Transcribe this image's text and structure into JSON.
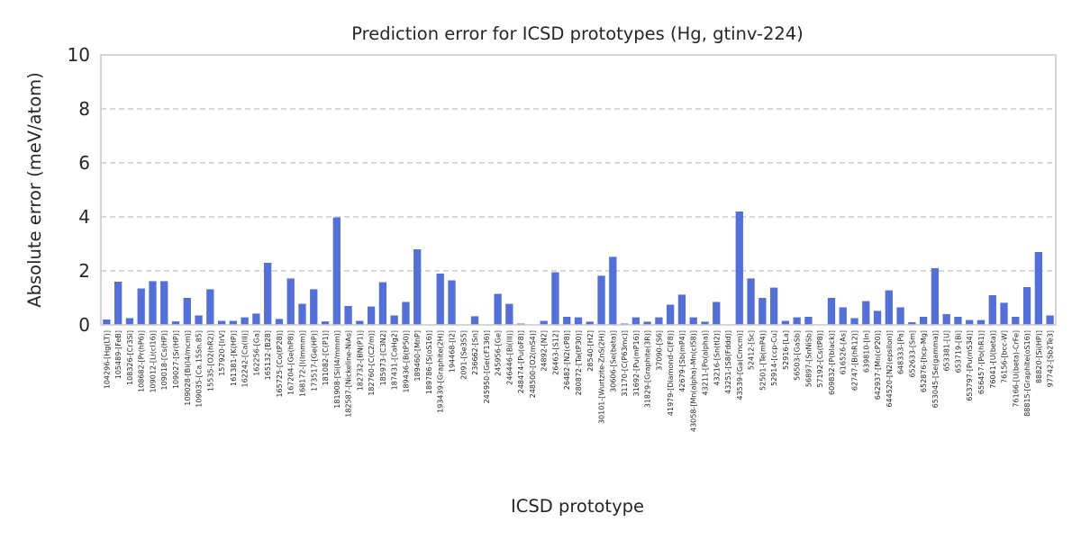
{
  "chart_data": {
    "type": "bar",
    "title": "Prediction error for ICSD prototypes (Hg, gtinv-224)",
    "xlabel": "ICSD prototype",
    "ylabel": "Absolute error (meV/atom)",
    "ylim": [
      0,
      10
    ],
    "yticks": [
      0,
      2,
      4,
      6,
      8,
      10
    ],
    "grid": "horizontal dashed",
    "bar_color": "#5470d6",
    "categories": [
      "104296-[Hg(LT)]",
      "105489-[FeB]",
      "108326-[Cr3Si]",
      "108682-[Pr(hP6)]",
      "109012-[Li(cI16)]",
      "109018-[Cs(HP)]",
      "109027-[Sr(HP)]",
      "109028-[Bi(I4/mcm)]",
      "109035-[Ca.15Sn.85]",
      "15535-[O2(hR2)]",
      "157920-[IrV]",
      "161381-[K(HP)]",
      "162242-[Ca(III)]",
      "162256-[Ga]",
      "165132-[B28]",
      "165725-[Co(tP28)]",
      "167204-[Ge(hP8)]",
      "168172-[I(Immm)]",
      "173517-[Ge(HP)]",
      "181082-[C(P1)]",
      "181908-[Si(I4/mmm)]",
      "182587-[Nickeline-NiAs]",
      "182732-[BN(P1)]",
      "182760-[C(C2/m)]",
      "185973-[C3N2]",
      "187431-[CaHg2]",
      "189436-[B(tP50)]",
      "189460-[MnP]",
      "189786-[S(oS16)]",
      "193439-[Graphite(2H)]",
      "194468-[I2]",
      "2091-[Se3S5]",
      "236662-[Sn]",
      "245950-[Ge(cF136)]",
      "245956-[Ge]",
      "246446-[Bi(III)]",
      "248474-[Pu(oF8)]",
      "248500-[O2(mS4)]",
      "24892-[N2]",
      "26463-[S12]",
      "26482-[N2(cP8)]",
      "280872-[Ta(tP30)]",
      "28540-[H2]",
      "30101-[Wurtzite-ZnS(2H)]",
      "30606-[Se(beta)]",
      "31170-[C(P63mc)]",
      "31692-[Pu(mP16)]",
      "31829-[Graphite(3R)]",
      "37090-[S6]",
      "41979-[Diamond-C(F8)]",
      "42679-[Sb(mP4)]",
      "43058-[Mn(alpha)-Mn(cI58)]",
      "43211-[Po(alpha)]",
      "43216-[Sn(tI2)]",
      "43251-[S8(Fddd)]",
      "43539-[Ga(Cmcm)]",
      "52412-[Sc]",
      "52501-[Te(mP4)]",
      "52914-[ccp-Cu]",
      "52916-[La]",
      "56503-[GaSb]",
      "56897-[SnNiSb]",
      "57192-[Cs(tP8)]",
      "609832-[P(black)]",
      "616526-[As]",
      "62747-[B(hR12)]",
      "639810-[In]",
      "642937-[Mn(cP20)]",
      "644520-[N2(epsilon)]",
      "648333-[Pa]",
      "652633-[Sm]",
      "652876-[hcp-Mg]",
      "653045-[Se(gamma)]",
      "653381-[U]",
      "653719-[Bi]",
      "653797-[Pu(mS34)]",
      "656457-[Po(hR1)]",
      "76041-[U(beta)]",
      "76156-[bcc-W]",
      "76166-[U(beta)-CrFe]",
      "88815-[Graphite(oS16)]",
      "88820-[Si(HP)]",
      "97742-[Sb2Te3]"
    ],
    "values": [
      0.2,
      1.6,
      0.25,
      1.35,
      1.62,
      1.62,
      0.13,
      1.0,
      0.35,
      1.32,
      0.15,
      0.15,
      0.28,
      0.42,
      2.3,
      0.22,
      1.72,
      0.78,
      1.32,
      0.13,
      3.98,
      0.7,
      0.15,
      0.68,
      1.58,
      0.35,
      0.85,
      2.8,
      0.0,
      1.9,
      1.65,
      0.0,
      0.32,
      0.0,
      1.15,
      0.78,
      0.05,
      0.0,
      0.15,
      1.95,
      0.3,
      0.28,
      0.12,
      1.82,
      2.52,
      0.05,
      0.28,
      0.12,
      0.28,
      0.75,
      1.12,
      0.28,
      0.12,
      0.85,
      0.0,
      4.2,
      1.72,
      1.0,
      1.38,
      0.15,
      0.28,
      0.3,
      0.0,
      1.0,
      0.65,
      0.25,
      0.88,
      0.52,
      1.28,
      0.65,
      0.1,
      0.3,
      2.1,
      0.4,
      0.3,
      0.18,
      0.18,
      1.1,
      0.82,
      0.3,
      1.4,
      2.7,
      0.35
    ]
  }
}
